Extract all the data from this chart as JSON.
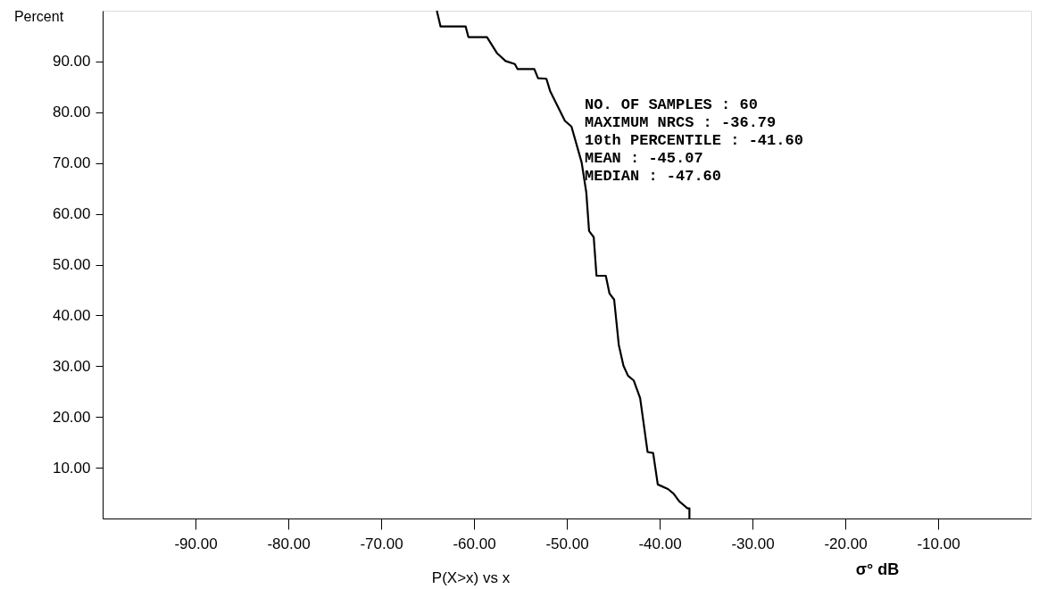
{
  "chart_data": {
    "type": "line",
    "ylabel": "Percent",
    "xlabel": "P(X>x) vs x",
    "annotations": [
      "NO. OF SAMPLES : 60",
      "MAXIMUM NRCS : -36.79",
      "10th PERCENTILE : -41.60",
      "MEAN : -45.07",
      "MEDIAN : -47.60",
      "σ° dB"
    ],
    "x": [
      -64.0,
      -63.6,
      -60.9,
      -60.6,
      -58.6,
      -57.5,
      -56.6,
      -55.6,
      -55.3,
      -53.5,
      -53.1,
      -52.2,
      -51.8,
      -50.2,
      -49.5,
      -48.4,
      -47.9,
      -47.6,
      -47.1,
      -46.8,
      -45.8,
      -45.4,
      -44.9,
      -44.4,
      -43.9,
      -43.4,
      -42.8,
      -42.1,
      -41.3,
      -40.7,
      -40.2,
      -39.1,
      -38.5,
      -37.9,
      -37.0,
      -36.79,
      -36.79
    ],
    "series": [
      {
        "color": "#000000",
        "values": [
          100,
          96.9,
          96.9,
          94.8,
          94.8,
          91.6,
          90.1,
          89.5,
          88.5,
          88.5,
          86.7,
          86.6,
          84.2,
          78.3,
          77.2,
          70.1,
          64.2,
          56.6,
          55.4,
          47.8,
          47.8,
          44.3,
          43.1,
          34.2,
          30.1,
          28.1,
          27.2,
          23.7,
          13.1,
          12.9,
          6.7,
          5.8,
          4.9,
          3.4,
          2.0,
          2.0,
          0
        ]
      }
    ],
    "xlim": [
      -100,
      0
    ],
    "ylim": [
      0,
      100
    ],
    "xticks": [
      {
        "value": -90,
        "label": "-90.00"
      },
      {
        "value": -80,
        "label": "-80.00"
      },
      {
        "value": -70,
        "label": "-70.00"
      },
      {
        "value": -60,
        "label": "-60.00"
      },
      {
        "value": -50,
        "label": "-50.00"
      },
      {
        "value": -40,
        "label": "-40.00"
      },
      {
        "value": -30,
        "label": "-30.00"
      },
      {
        "value": -20,
        "label": "-20.00"
      },
      {
        "value": -10,
        "label": "-10.00"
      }
    ],
    "yticks": [
      {
        "value": 10,
        "label": "10.00"
      },
      {
        "value": 20,
        "label": "20.00"
      },
      {
        "value": 30,
        "label": "30.00"
      },
      {
        "value": 40,
        "label": "40.00"
      },
      {
        "value": 50,
        "label": "50.00"
      },
      {
        "value": 60,
        "label": "60.00"
      },
      {
        "value": 70,
        "label": "70.00"
      },
      {
        "value": 80,
        "label": "80.00"
      },
      {
        "value": 90,
        "label": "90.00"
      }
    ],
    "grid": false,
    "marker": "none",
    "line_style": "solid"
  }
}
